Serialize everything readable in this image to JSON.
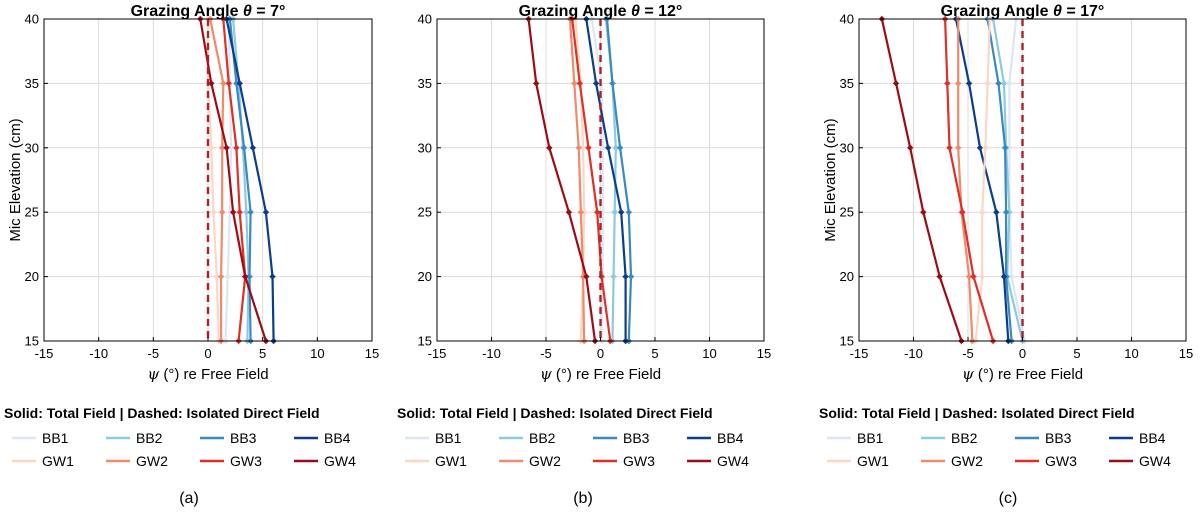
{
  "figure": {
    "legend_title": "Solid: Total Field | Dashed: Isolated Direct Field",
    "legend_entries": [
      {
        "name": "BB1",
        "color": "#dbe7f3"
      },
      {
        "name": "BB2",
        "color": "#8ccae0"
      },
      {
        "name": "BB3",
        "color": "#3a88c4"
      },
      {
        "name": "BB4",
        "color": "#0b3d8c"
      },
      {
        "name": "GW1",
        "color": "#fbd7c4"
      },
      {
        "name": "GW2",
        "color": "#f08a6a"
      },
      {
        "name": "GW3",
        "color": "#df2f26"
      },
      {
        "name": "GW4",
        "color": "#9c0c16"
      }
    ],
    "xticks": [
      "-15",
      "-10",
      "-5",
      "0",
      "5",
      "10",
      "15"
    ],
    "yticks": [
      "15",
      "20",
      "25",
      "30",
      "35",
      "40"
    ]
  },
  "chart_data": [
    {
      "type": "line",
      "title_prefix": "Grazing Angle ",
      "theta_symbol": "θ",
      "title_suffix": " = 7°",
      "xlabel_symbol": "ψ",
      "xlabel_rest": " (°) re Free Field",
      "ylabel": "Mic Elevation (cm)",
      "caption": "(a)",
      "xlim": [
        -15,
        15
      ],
      "ylim": [
        15,
        40
      ],
      "grid": true,
      "direct_field_x": 0,
      "y": [
        15,
        20,
        25,
        30,
        35,
        40
      ],
      "series": [
        {
          "name": "BB1",
          "color": "#dbe7f3",
          "x": [
            1.6,
            1.8,
            2.0,
            2.1,
            2.0,
            1.9
          ]
        },
        {
          "name": "BB2",
          "color": "#8ccae0",
          "x": [
            3.6,
            3.7,
            3.5,
            3.2,
            2.8,
            2.3
          ]
        },
        {
          "name": "BB3",
          "color": "#3a88c4",
          "x": [
            3.9,
            3.8,
            3.9,
            3.3,
            2.6,
            2.0
          ]
        },
        {
          "name": "BB4",
          "color": "#0b3d8c",
          "x": [
            6.0,
            5.9,
            5.3,
            4.1,
            2.9,
            1.7
          ]
        },
        {
          "name": "GW1",
          "color": "#fbd7c4",
          "x": [
            1.0,
            0.8,
            0.5,
            0.3,
            0.0,
            0.0
          ]
        },
        {
          "name": "GW2",
          "color": "#f08a6a",
          "x": [
            1.2,
            1.2,
            1.3,
            1.3,
            1.4,
            0.2
          ]
        },
        {
          "name": "GW3",
          "color": "#df2f26",
          "x": [
            2.8,
            3.4,
            2.9,
            2.6,
            1.9,
            1.4
          ]
        },
        {
          "name": "GW4",
          "color": "#9c0c16",
          "x": [
            5.3,
            3.4,
            2.3,
            1.7,
            0.3,
            -0.7
          ]
        }
      ]
    },
    {
      "type": "line",
      "title_prefix": "Grazing Angle ",
      "theta_symbol": "θ",
      "title_suffix": " = 12°",
      "xlabel_symbol": "ψ",
      "xlabel_rest": " (°) re Free Field",
      "ylabel": "",
      "caption": "(b)",
      "xlim": [
        -15,
        15
      ],
      "ylim": [
        15,
        40
      ],
      "grid": true,
      "direct_field_x": 0,
      "y": [
        15,
        20,
        25,
        30,
        35,
        40
      ],
      "series": [
        {
          "name": "BB1",
          "color": "#dbe7f3",
          "x": [
            0.1,
            0.2,
            0.2,
            0.2,
            0.1,
            -0.8
          ]
        },
        {
          "name": "BB2",
          "color": "#8ccae0",
          "x": [
            1.1,
            1.2,
            1.3,
            1.4,
            1.1,
            0.5
          ]
        },
        {
          "name": "BB3",
          "color": "#3a88c4",
          "x": [
            2.6,
            2.8,
            2.6,
            1.8,
            1.1,
            0.6
          ]
        },
        {
          "name": "BB4",
          "color": "#0b3d8c",
          "x": [
            2.3,
            2.3,
            1.9,
            0.7,
            -0.4,
            -1.3
          ]
        },
        {
          "name": "GW1",
          "color": "#fbd7c4",
          "x": [
            -1.8,
            -1.6,
            -1.5,
            -1.6,
            -1.8,
            -2.3
          ]
        },
        {
          "name": "GW2",
          "color": "#f08a6a",
          "x": [
            -1.5,
            -1.6,
            -1.8,
            -2.0,
            -2.4,
            -2.8
          ]
        },
        {
          "name": "GW3",
          "color": "#df2f26",
          "x": [
            0.9,
            0.1,
            -0.3,
            -1.1,
            -1.9,
            -2.6
          ]
        },
        {
          "name": "GW4",
          "color": "#9c0c16",
          "x": [
            -0.5,
            -1.3,
            -2.9,
            -4.7,
            -5.9,
            -6.6
          ]
        }
      ]
    },
    {
      "type": "line",
      "title_prefix": "Grazing Angle ",
      "theta_symbol": "θ",
      "title_suffix": " = 17°",
      "xlabel_symbol": "ψ",
      "xlabel_rest": " (°) re Free Field",
      "ylabel": "Mic Elevation (cm)",
      "caption": "(c)",
      "xlim": [
        -15,
        15
      ],
      "ylim": [
        15,
        40
      ],
      "grid": true,
      "direct_field_x": 0,
      "y": [
        15,
        20,
        25,
        30,
        35,
        40
      ],
      "series": [
        {
          "name": "BB1",
          "color": "#dbe7f3",
          "x": [
            0.2,
            -1.0,
            -1.2,
            -1.2,
            -1.2,
            -0.6
          ]
        },
        {
          "name": "BB2",
          "color": "#8ccae0",
          "x": [
            0.0,
            -1.4,
            -1.2,
            -1.5,
            -1.7,
            -2.7
          ]
        },
        {
          "name": "BB3",
          "color": "#3a88c4",
          "x": [
            -1.0,
            -1.5,
            -1.5,
            -1.6,
            -2.2,
            -3.2
          ]
        },
        {
          "name": "BB4",
          "color": "#0b3d8c",
          "x": [
            -1.3,
            -1.7,
            -2.4,
            -3.9,
            -4.9,
            -6.1
          ]
        },
        {
          "name": "GW1",
          "color": "#fbd7c4",
          "x": [
            -4.3,
            -3.7,
            -3.7,
            -3.4,
            -3.2,
            -3.0
          ]
        },
        {
          "name": "GW2",
          "color": "#f08a6a",
          "x": [
            -4.6,
            -4.9,
            -5.6,
            -5.9,
            -5.9,
            -5.9
          ]
        },
        {
          "name": "GW3",
          "color": "#df2f26",
          "x": [
            -2.7,
            -4.5,
            -5.5,
            -6.7,
            -6.9,
            -7.1
          ]
        },
        {
          "name": "GW4",
          "color": "#9c0c16",
          "x": [
            -5.6,
            -7.6,
            -9.1,
            -10.3,
            -11.6,
            -12.9
          ]
        }
      ]
    }
  ]
}
